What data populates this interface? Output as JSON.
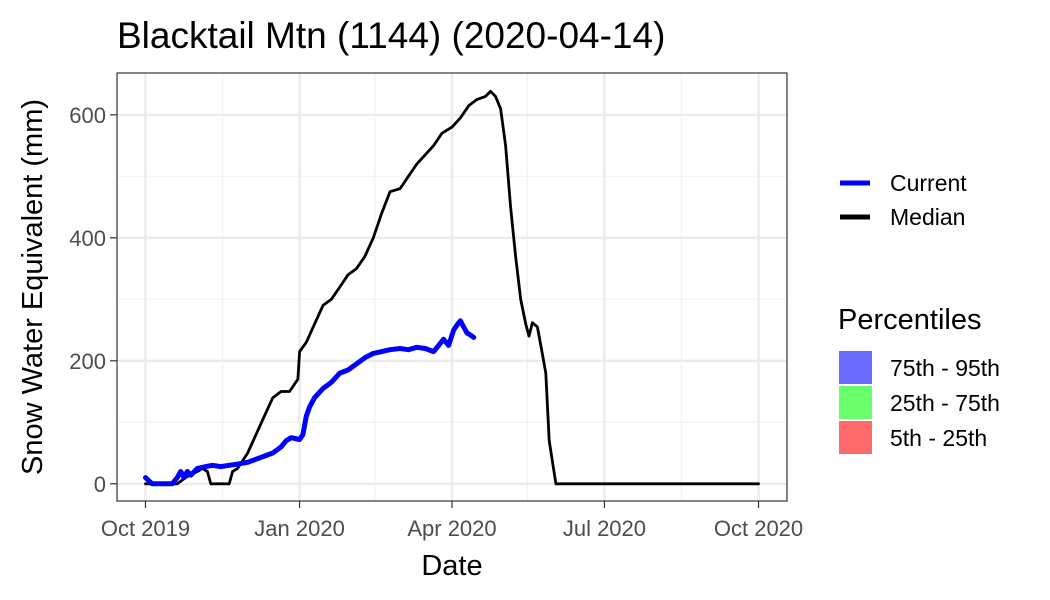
{
  "chart_data": {
    "type": "line",
    "title": "Blacktail Mtn (1144) (2020-04-14)",
    "xlabel": "Date",
    "ylabel": "Snow Water Equivalent (mm)",
    "x_ticks": [
      {
        "date": "2019-10-01",
        "label": "Oct 2019"
      },
      {
        "date": "2020-01-01",
        "label": "Jan 2020"
      },
      {
        "date": "2020-04-01",
        "label": "Apr 2020"
      },
      {
        "date": "2020-07-01",
        "label": "Jul 2020"
      },
      {
        "date": "2020-10-01",
        "label": "Oct 2020"
      }
    ],
    "xlim": [
      "2019-09-14",
      "2020-10-18"
    ],
    "y_ticks": [
      0,
      200,
      400,
      600
    ],
    "ylim": [
      -28,
      668
    ],
    "grid": true,
    "series": [
      {
        "name": "Current",
        "color": "#0000ff",
        "points": [
          [
            "2019-10-01",
            10
          ],
          [
            "2019-10-03",
            5
          ],
          [
            "2019-10-05",
            0
          ],
          [
            "2019-10-10",
            0
          ],
          [
            "2019-10-17",
            0
          ],
          [
            "2019-10-20",
            10
          ],
          [
            "2019-10-22",
            20
          ],
          [
            "2019-10-24",
            10
          ],
          [
            "2019-10-26",
            20
          ],
          [
            "2019-10-28",
            14
          ],
          [
            "2019-11-01",
            25
          ],
          [
            "2019-11-06",
            28
          ],
          [
            "2019-11-10",
            30
          ],
          [
            "2019-11-15",
            28
          ],
          [
            "2019-11-20",
            30
          ],
          [
            "2019-11-25",
            32
          ],
          [
            "2019-12-01",
            35
          ],
          [
            "2019-12-06",
            40
          ],
          [
            "2019-12-11",
            45
          ],
          [
            "2019-12-16",
            50
          ],
          [
            "2019-12-21",
            60
          ],
          [
            "2019-12-24",
            70
          ],
          [
            "2019-12-27",
            75
          ],
          [
            "2020-01-01",
            72
          ],
          [
            "2020-01-03",
            80
          ],
          [
            "2020-01-05",
            110
          ],
          [
            "2020-01-07",
            125
          ],
          [
            "2020-01-10",
            140
          ],
          [
            "2020-01-15",
            155
          ],
          [
            "2020-01-20",
            165
          ],
          [
            "2020-01-25",
            180
          ],
          [
            "2020-01-30",
            185
          ],
          [
            "2020-02-04",
            195
          ],
          [
            "2020-02-09",
            205
          ],
          [
            "2020-02-14",
            212
          ],
          [
            "2020-02-19",
            215
          ],
          [
            "2020-02-24",
            218
          ],
          [
            "2020-03-01",
            220
          ],
          [
            "2020-03-06",
            218
          ],
          [
            "2020-03-11",
            222
          ],
          [
            "2020-03-16",
            220
          ],
          [
            "2020-03-21",
            215
          ],
          [
            "2020-03-24",
            225
          ],
          [
            "2020-03-27",
            235
          ],
          [
            "2020-03-30",
            225
          ],
          [
            "2020-04-02",
            250
          ],
          [
            "2020-04-04",
            258
          ],
          [
            "2020-04-06",
            265
          ],
          [
            "2020-04-08",
            255
          ],
          [
            "2020-04-10",
            245
          ],
          [
            "2020-04-12",
            242
          ],
          [
            "2020-04-14",
            238
          ]
        ]
      },
      {
        "name": "Median",
        "color": "#000000",
        "points": [
          [
            "2019-10-01",
            0
          ],
          [
            "2019-10-20",
            0
          ],
          [
            "2019-10-25",
            10
          ],
          [
            "2019-10-28",
            15
          ],
          [
            "2019-11-01",
            20
          ],
          [
            "2019-11-04",
            25
          ],
          [
            "2019-11-07",
            20
          ],
          [
            "2019-11-09",
            0
          ],
          [
            "2019-11-15",
            0
          ],
          [
            "2019-11-20",
            0
          ],
          [
            "2019-11-22",
            20
          ],
          [
            "2019-11-25",
            25
          ],
          [
            "2019-12-01",
            50
          ],
          [
            "2019-12-06",
            80
          ],
          [
            "2019-12-11",
            110
          ],
          [
            "2019-12-16",
            140
          ],
          [
            "2019-12-21",
            150
          ],
          [
            "2019-12-26",
            150
          ],
          [
            "2019-12-31",
            170
          ],
          [
            "2020-01-01",
            215
          ],
          [
            "2020-01-05",
            230
          ],
          [
            "2020-01-10",
            260
          ],
          [
            "2020-01-15",
            290
          ],
          [
            "2020-01-20",
            300
          ],
          [
            "2020-01-25",
            320
          ],
          [
            "2020-01-30",
            340
          ],
          [
            "2020-02-04",
            350
          ],
          [
            "2020-02-09",
            370
          ],
          [
            "2020-02-14",
            400
          ],
          [
            "2020-02-19",
            440
          ],
          [
            "2020-02-24",
            475
          ],
          [
            "2020-03-01",
            480
          ],
          [
            "2020-03-06",
            500
          ],
          [
            "2020-03-11",
            520
          ],
          [
            "2020-03-16",
            535
          ],
          [
            "2020-03-21",
            550
          ],
          [
            "2020-03-26",
            570
          ],
          [
            "2020-04-01",
            580
          ],
          [
            "2020-04-06",
            595
          ],
          [
            "2020-04-11",
            615
          ],
          [
            "2020-04-16",
            625
          ],
          [
            "2020-04-21",
            630
          ],
          [
            "2020-04-24",
            638
          ],
          [
            "2020-04-27",
            630
          ],
          [
            "2020-04-30",
            610
          ],
          [
            "2020-05-03",
            550
          ],
          [
            "2020-05-06",
            450
          ],
          [
            "2020-05-09",
            370
          ],
          [
            "2020-05-12",
            300
          ],
          [
            "2020-05-15",
            260
          ],
          [
            "2020-05-17",
            240
          ],
          [
            "2020-05-19",
            262
          ],
          [
            "2020-05-22",
            255
          ],
          [
            "2020-05-25",
            210
          ],
          [
            "2020-05-27",
            180
          ],
          [
            "2020-05-29",
            70
          ],
          [
            "2020-06-02",
            0
          ],
          [
            "2020-07-15",
            0
          ],
          [
            "2020-09-01",
            0
          ],
          [
            "2020-10-01",
            0
          ]
        ]
      }
    ],
    "legend": {
      "placement": "right",
      "lines": [
        {
          "label": "Current",
          "color": "#0000ff"
        },
        {
          "label": "Median",
          "color": "#000000"
        }
      ],
      "percentiles_title": "Percentiles",
      "percentiles": [
        {
          "label": "75th - 95th",
          "color": "#6b6bff"
        },
        {
          "label": "25th - 75th",
          "color": "#6bff6b"
        },
        {
          "label": "5th - 25th",
          "color": "#ff6b6b"
        }
      ]
    }
  }
}
